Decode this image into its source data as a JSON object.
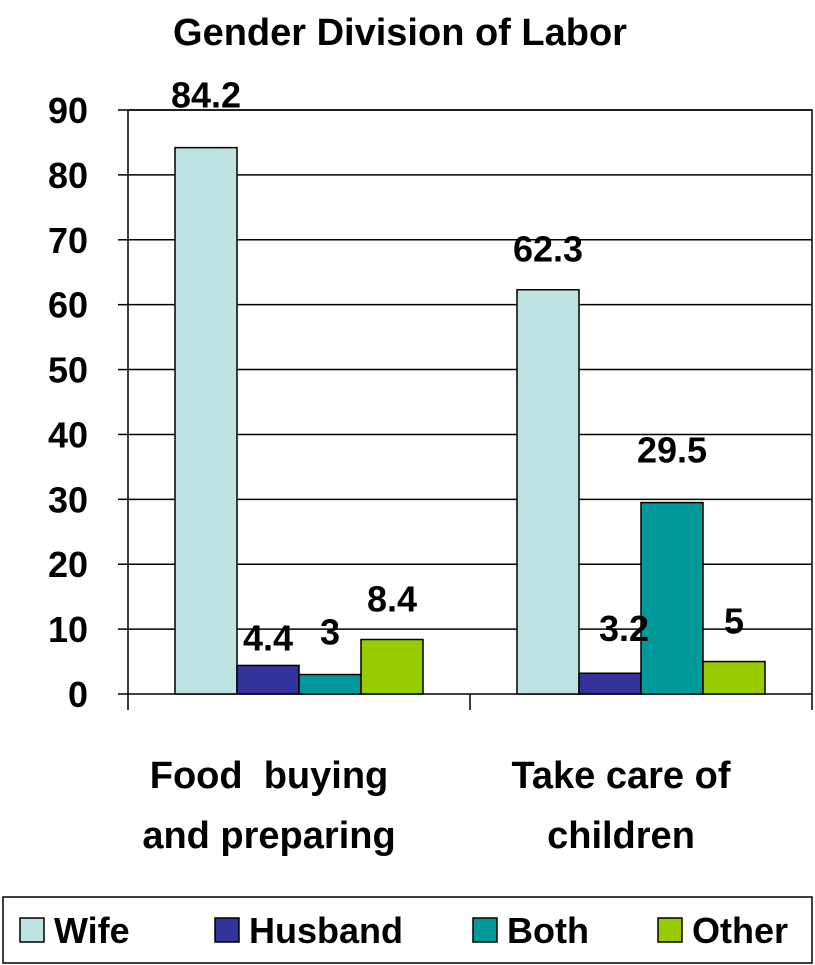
{
  "chart_data": {
    "type": "bar",
    "title": "Gender Division of Labor",
    "xlabel": "",
    "ylabel": "",
    "ylim": [
      0,
      90
    ],
    "yticks": [
      0,
      10,
      20,
      30,
      40,
      50,
      60,
      70,
      80,
      90
    ],
    "grid": true,
    "legend_position": "bottom",
    "categories": [
      [
        "Food  buying",
        "and preparing"
      ],
      [
        "Take care of",
        "children"
      ]
    ],
    "series": [
      {
        "name": "Wife",
        "color": "#bfe3e3",
        "values": [
          84.2,
          62.3
        ],
        "labels": [
          "84.2",
          "62.3"
        ]
      },
      {
        "name": "Husband",
        "color": "#333399",
        "values": [
          4.4,
          3.2
        ],
        "labels": [
          "4.4",
          "3.2"
        ]
      },
      {
        "name": "Both",
        "color": "#009999",
        "values": [
          3,
          29.5
        ],
        "labels": [
          "3",
          "29.5"
        ]
      },
      {
        "name": "Other",
        "color": "#99cc00",
        "values": [
          8.4,
          5
        ],
        "labels": [
          "8.4",
          "5"
        ]
      }
    ]
  }
}
